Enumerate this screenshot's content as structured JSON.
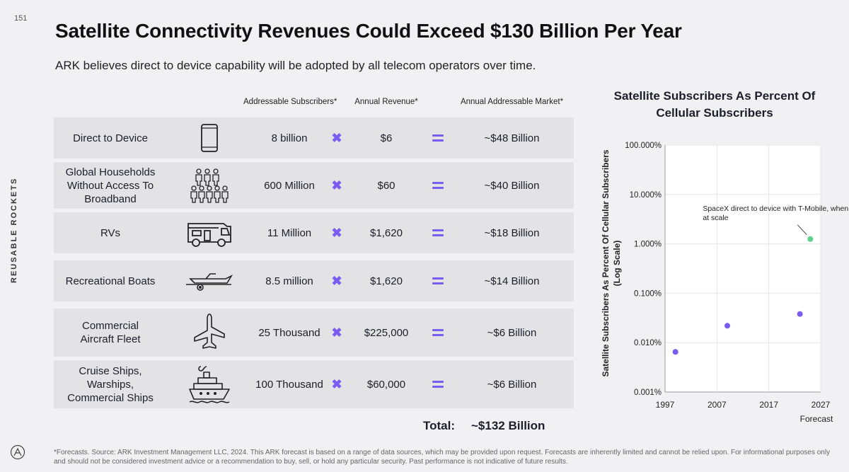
{
  "page_number": "151",
  "side_label": "REUSABLE ROCKETS",
  "title": "Satellite Connectivity Revenues Could Exceed $130 Billion Per Year",
  "subtitle": "ARK believes direct to device capability will be adopted by all telecom operators over time.",
  "table": {
    "headers": {
      "subscribers": "Addressable Subscribers*",
      "revenue": "Annual Revenue*",
      "market": "Annual Addressable Market*"
    },
    "operator_x_icon": "multiply-icon",
    "operator_eq_icon": "equals-icon",
    "rows": [
      {
        "label": "Direct to Device",
        "icon": "smartphone-icon",
        "subscribers": "8 billion",
        "revenue": "$6",
        "market": "~$48 Billion"
      },
      {
        "label": "Global Households Without Access To Broadband",
        "icon": "people-icon",
        "subscribers": "600 Million",
        "revenue": "$60",
        "market": "~$40 Billion"
      },
      {
        "label": "RVs",
        "icon": "rv-icon",
        "subscribers": "11 Million",
        "revenue": "$1,620",
        "market": "~$18 Billion"
      },
      {
        "label": "Recreational Boats",
        "icon": "boat-trailer-icon",
        "subscribers": "8.5 million",
        "revenue": "$1,620",
        "market": "~$14 Billion"
      },
      {
        "label": "Commercial Aircraft Fleet",
        "icon": "airplane-icon",
        "subscribers": "25 Thousand",
        "revenue": "$225,000",
        "market": "~$6 Billion"
      },
      {
        "label": "Cruise Ships, Warships, Commercial Ships",
        "icon": "ship-icon",
        "subscribers": "100 Thousand",
        "revenue": "$60,000",
        "market": "~$6 Billion"
      }
    ],
    "total_label": "Total:",
    "total_value": "~$132 Billion"
  },
  "colors": {
    "accent": "#7b5cf0",
    "highlight_point": "#5fd08a",
    "background": "#f1f1f3",
    "row_fill": "#e3e3e6"
  },
  "chart_data": {
    "type": "scatter",
    "title": "Satellite Subscribers As Percent Of Cellular Subscribers",
    "ylabel": "Satellite Subscribers As Percent Of Cellular Subscribers",
    "ylabel_sub": "(Log Scale)",
    "xlabel": "",
    "y_scale": "log",
    "ylim": [
      0.001,
      100
    ],
    "xlim": [
      1997,
      2027
    ],
    "x_ticks": [
      1997,
      2007,
      2017,
      2027
    ],
    "x_tick_labels": [
      "1997",
      "2007",
      "2017",
      "2027"
    ],
    "x_sub_label": "Forecast",
    "y_ticks": [
      0.001,
      0.01,
      0.1,
      1,
      10,
      100
    ],
    "y_tick_labels": [
      "0.001%",
      "0.010%",
      "0.100%",
      "1.000%",
      "10.000%",
      "100.000%"
    ],
    "grid": true,
    "points": [
      {
        "x": 1999,
        "y": 0.0065,
        "series": "historical"
      },
      {
        "x": 2009,
        "y": 0.022,
        "series": "historical"
      },
      {
        "x": 2023,
        "y": 0.038,
        "series": "historical"
      },
      {
        "x": 2025,
        "y": 1.25,
        "series": "forecast"
      }
    ],
    "annotation": "SpaceX direct to device with T-Mobile, when at scale"
  },
  "footnote": "*Forecasts. Source: ARK Investment Management LLC, 2024. This ARK forecast is based on a range of data sources, which may be provided upon request. Forecasts are inherently limited and cannot be relied upon. For informational purposes only and should not be considered investment advice or a recommendation to buy, sell, or hold any particular security. Past performance is not indicative of future results."
}
